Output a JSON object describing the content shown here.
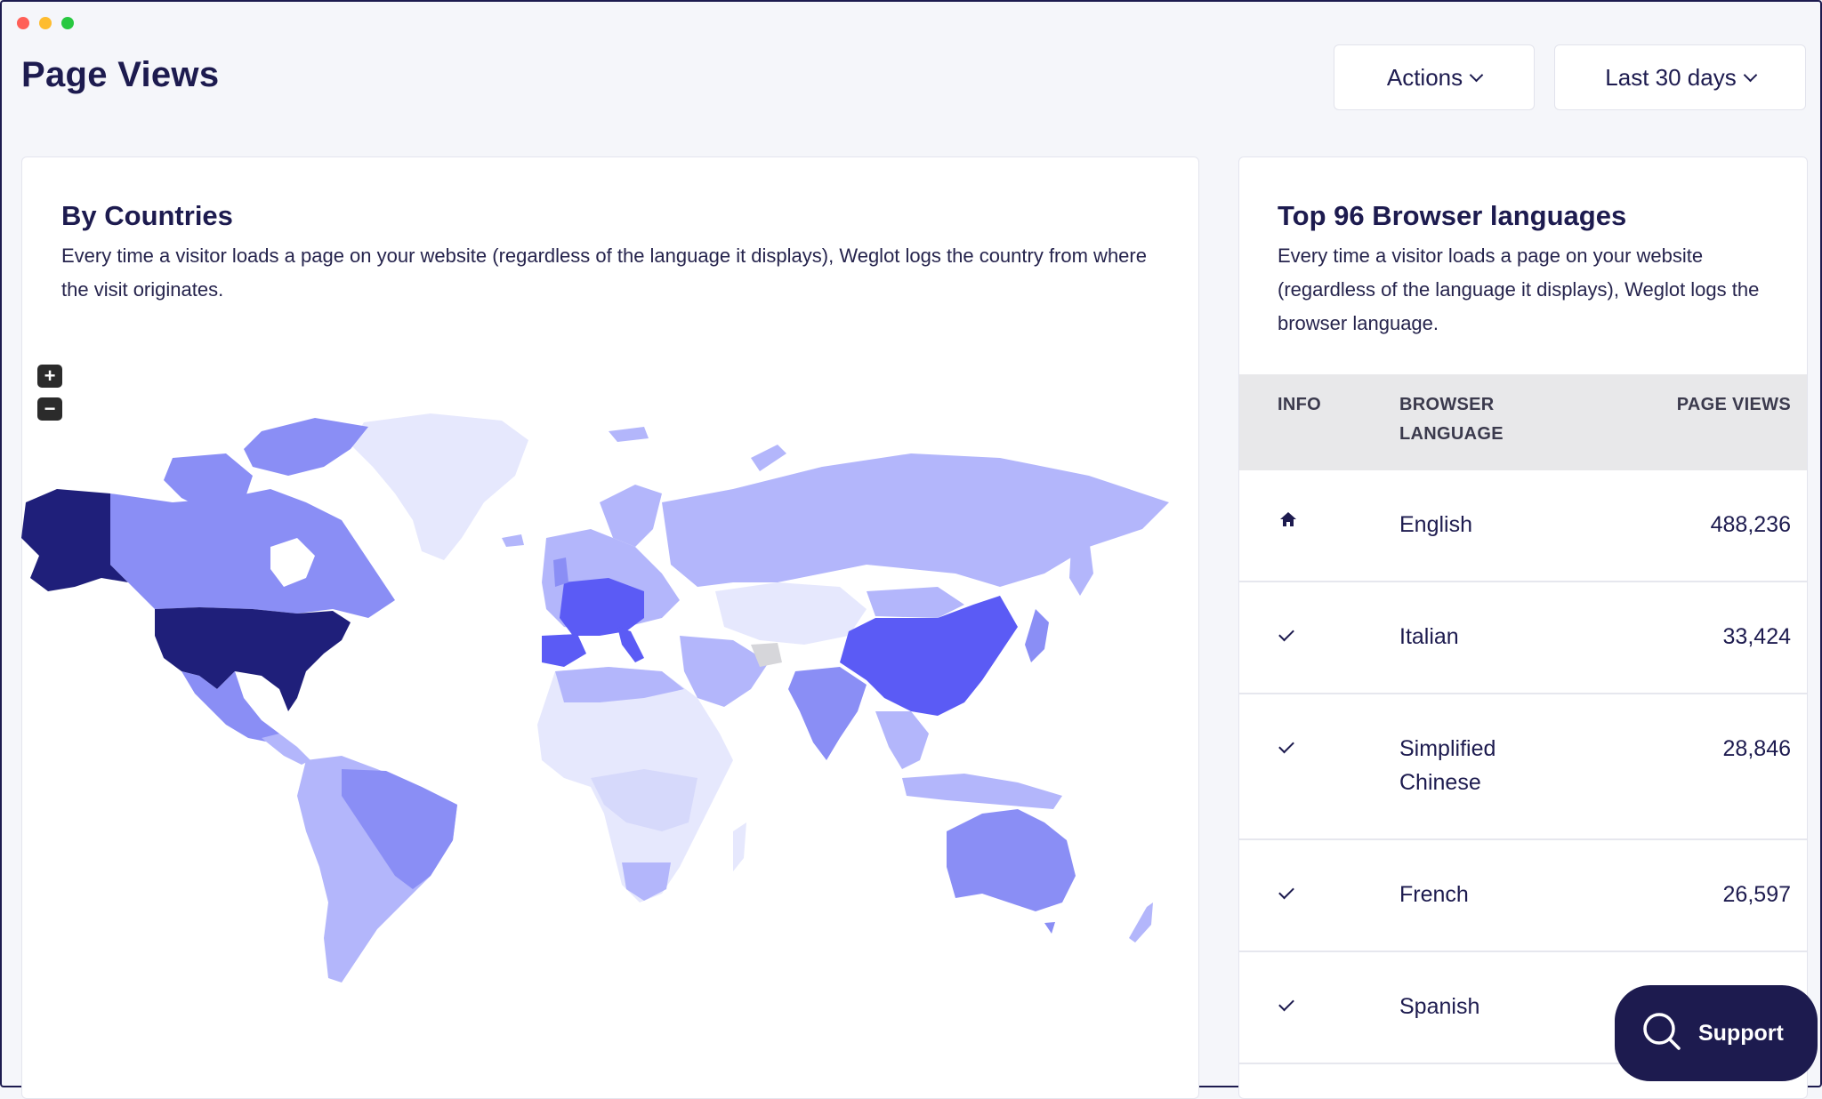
{
  "header": {
    "title": "Page Views",
    "actions_label": "Actions",
    "period_label": "Last 30 days"
  },
  "countries": {
    "title": "By Countries",
    "description": "Every time a visitor loads a page on your website (regardless of the language it displays), Weglot logs the country from where the visit originates.",
    "zoom_in": "+",
    "zoom_out": "−"
  },
  "languages": {
    "title": "Top 96 Browser languages",
    "description": "Every time a visitor loads a page on your website (regardless of the language it displays), Weglot logs the browser language.",
    "columns": {
      "info": "INFO",
      "language": "BROWSER LANGUAGE",
      "views": "PAGE VIEWS"
    },
    "rows": [
      {
        "icon": "home-icon",
        "language": "English",
        "views": "488,236"
      },
      {
        "icon": "check-icon",
        "language": "Italian",
        "views": "33,424"
      },
      {
        "icon": "check-icon",
        "language": "Simplified Chinese",
        "views": "28,846"
      },
      {
        "icon": "check-icon",
        "language": "French",
        "views": "26,597"
      },
      {
        "icon": "check-icon",
        "language": "Spanish",
        "views": ""
      }
    ]
  },
  "support": {
    "label": "Support",
    "icon": "search-icon"
  },
  "colors": {
    "navy": "#1d1b4f",
    "map_darkest": "#1f1f7a",
    "map_dark": "#5b5bf5",
    "map_mid": "#8a8ef5",
    "map_light": "#b3b6fb",
    "map_lightest": "#e6e8fd"
  }
}
